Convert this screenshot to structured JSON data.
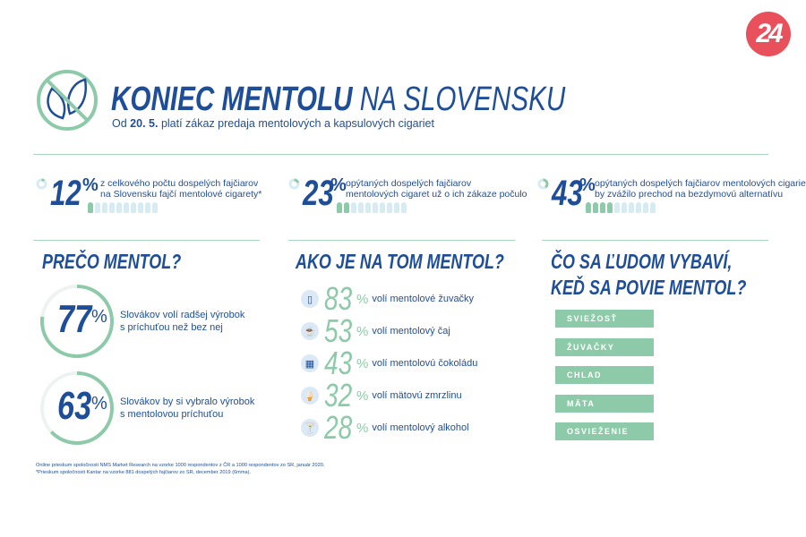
{
  "logo": {
    "text": "24",
    "color": "#e8505b"
  },
  "header": {
    "title_bold": "KONIEC MENTOLU",
    "title_light": "NA SLOVENSKU",
    "subtitle_pre": "Od",
    "subtitle_date": "20. 5.",
    "subtitle_post": "platí zákaz predaja mentolových a kapsulových cigariet",
    "icon": "no-leaf-icon"
  },
  "colors": {
    "blue": "#1f4e99",
    "green": "#8dcaa9"
  },
  "stats": [
    {
      "value": "12",
      "unit": "%",
      "line1": "z celkového počtu dospelých fajčiarov",
      "line2": "na Slovensku fajčí mentolové cigarety*",
      "people_filled": 1,
      "people_total": 10
    },
    {
      "value": "23",
      "unit": "%",
      "line1": "opýtaných dospelých fajčiarov",
      "line2": "mentolových cigaret už o ich zákaze počulo",
      "people_filled": 2,
      "people_total": 10
    },
    {
      "value": "43",
      "unit": "%",
      "line1": "opýtaných dospelých fajčiarov mentolových cigariet",
      "line2": "by zvážilo prechod na bezdymovú alternatívu",
      "people_filled": 4,
      "people_total": 10
    }
  ],
  "left": {
    "title": "PREČO MENTOL?",
    "items": [
      {
        "value": "77",
        "unit": "%",
        "fraction": 0.77,
        "line1": "Slovákov volí radšej výrobok",
        "line2": "s príchuťou než bez nej"
      },
      {
        "value": "63",
        "unit": "%",
        "fraction": 0.63,
        "line1": "Slovákov by si vybralo výrobok",
        "line2": "s mentolovou príchuťou"
      }
    ]
  },
  "middle": {
    "title": "AKO JE NA TOM  MENTOL?",
    "items": [
      {
        "icon": "chewing-gum-icon",
        "glyph": "▯",
        "value": "83",
        "unit": "%",
        "text": "volí mentolové žuvačky"
      },
      {
        "icon": "tea-cup-icon",
        "glyph": "☕",
        "value": "53",
        "unit": "%",
        "text": "volí mentolový čaj"
      },
      {
        "icon": "chocolate-icon",
        "glyph": "▦",
        "value": "43",
        "unit": "%",
        "text": "volí mentolovú čokoládu"
      },
      {
        "icon": "ice-cream-icon",
        "glyph": "🍦",
        "value": "32",
        "unit": "%",
        "text": "volí mätovú zmrzlinu"
      },
      {
        "icon": "cocktail-icon",
        "glyph": "🍸",
        "value": "28",
        "unit": "%",
        "text": "volí mentolový alkohol"
      }
    ]
  },
  "right": {
    "title_line1": "ČO SA ĽUDOM VYBAVÍ,",
    "title_line2": "KEĎ SA POVIE MENTOL?",
    "tags": [
      "SVIEŽOSŤ",
      "ŽUVAČKY",
      "CHLAD",
      "MÄTA",
      "OSVIEŽENIE"
    ]
  },
  "footnotes": [
    "Online prieskum spoločnosti NMS Market Research na vzorke 1000 respondentov z ČR a 1000 respondentov zo SR, január 2020.",
    "*Prieskum spoločnosti Kantar na vzorke 881 dospelých fajčiarov zo SR, december 2019 (6mma)."
  ]
}
